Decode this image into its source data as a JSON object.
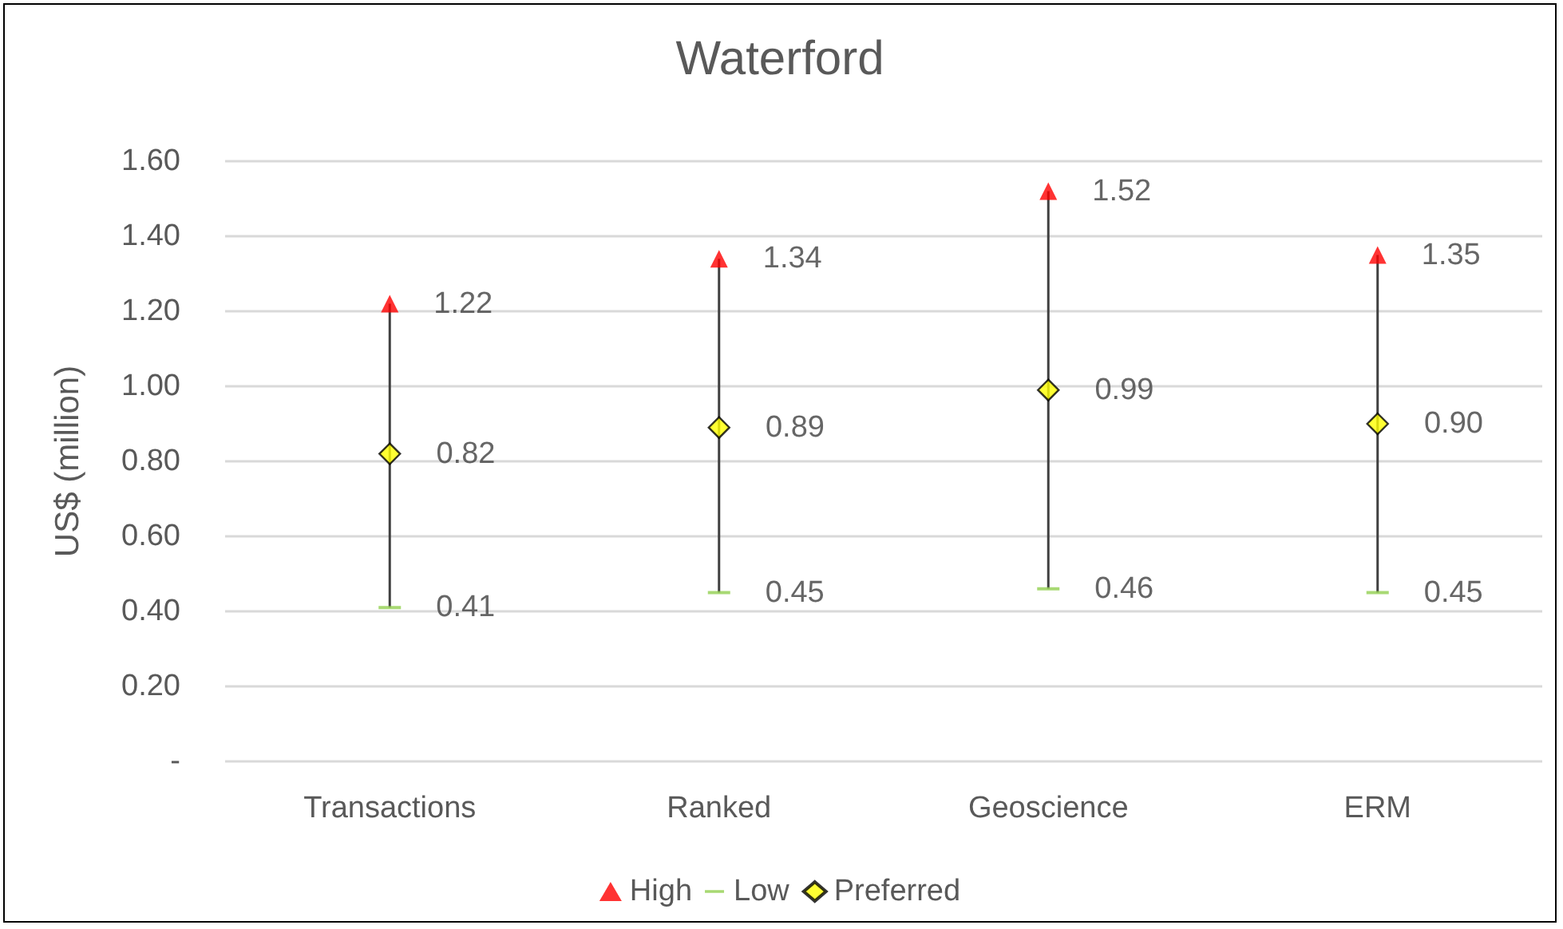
{
  "chart_data": {
    "type": "scatter",
    "title": "Waterford",
    "ylabel": "US$ (million)",
    "categories": [
      "Transactions",
      "Ranked",
      "Geoscience",
      "ERM"
    ],
    "series": [
      {
        "name": "High",
        "color": "#ff0000",
        "marker": "triangle",
        "values": [
          1.22,
          1.34,
          1.52,
          1.35
        ],
        "value_labels": [
          "1.22",
          "1.34",
          "1.52",
          "1.35"
        ]
      },
      {
        "name": "Low",
        "color": "#92d050",
        "values": [
          0.41,
          0.45,
          0.46,
          0.45
        ],
        "value_labels": [
          "0.41",
          "0.45",
          "0.46",
          "0.45"
        ]
      },
      {
        "name": "Preferred",
        "color": "#ffff00",
        "marker": "diamond",
        "values": [
          0.82,
          0.89,
          0.99,
          0.9
        ],
        "value_labels": [
          "0.82",
          "0.89",
          "0.99",
          "0.90"
        ]
      }
    ],
    "ylim": [
      0,
      1.6
    ],
    "yticks": [
      {
        "value": 0,
        "label": "-"
      },
      {
        "value": 0.2,
        "label": "0.20"
      },
      {
        "value": 0.4,
        "label": "0.40"
      },
      {
        "value": 0.6,
        "label": "0.60"
      },
      {
        "value": 0.8,
        "label": "0.80"
      },
      {
        "value": 1.0,
        "label": "1.00"
      },
      {
        "value": 1.2,
        "label": "1.20"
      },
      {
        "value": 1.4,
        "label": "1.40"
      },
      {
        "value": 1.6,
        "label": "1.60"
      }
    ],
    "grid": "y",
    "legend": "bottom"
  }
}
